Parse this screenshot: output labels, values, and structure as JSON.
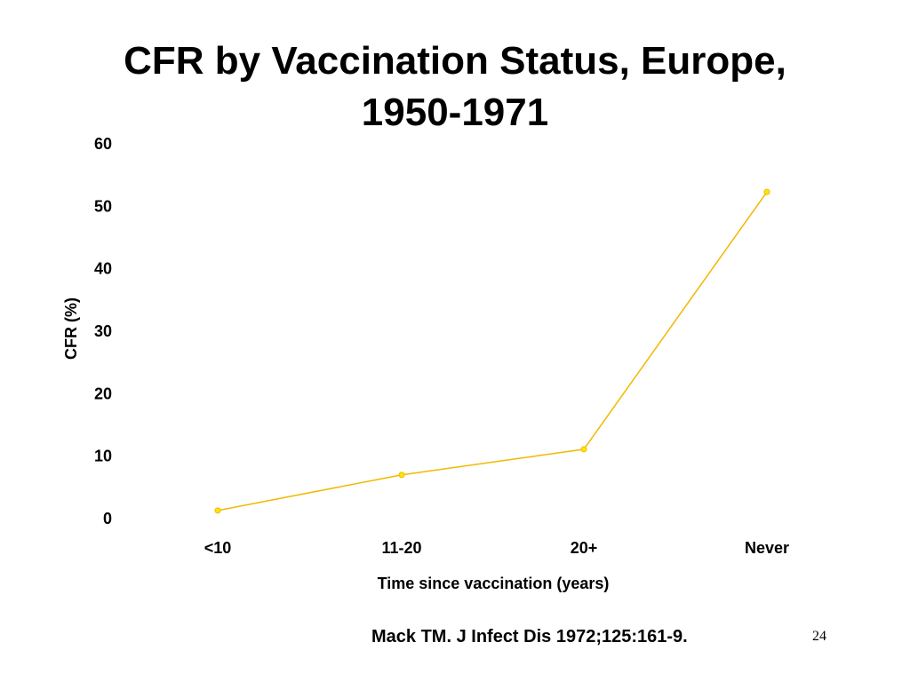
{
  "slide": {
    "title_line1": "CFR by Vaccination Status, Europe,",
    "title_line2": "1950-1971",
    "citation": "Mack TM.  J Infect Dis 1972;125:161-9.",
    "page_number": "24"
  },
  "colors": {
    "line": "#f2b800",
    "marker": "#ffe600"
  },
  "chart_data": {
    "type": "line",
    "title": "CFR by Vaccination Status, Europe, 1950-1971",
    "xlabel": "Time since vaccination (years)",
    "ylabel": "CFR (%)",
    "categories": [
      "<10",
      "11-20",
      "20+",
      "Never"
    ],
    "series": [
      {
        "values": [
          1.3,
          7.0,
          11.1,
          52.3
        ]
      }
    ],
    "ylim": [
      0,
      60
    ],
    "yticks": [
      0,
      10,
      20,
      30,
      40,
      50,
      60
    ],
    "grid": false,
    "legend": "none"
  }
}
